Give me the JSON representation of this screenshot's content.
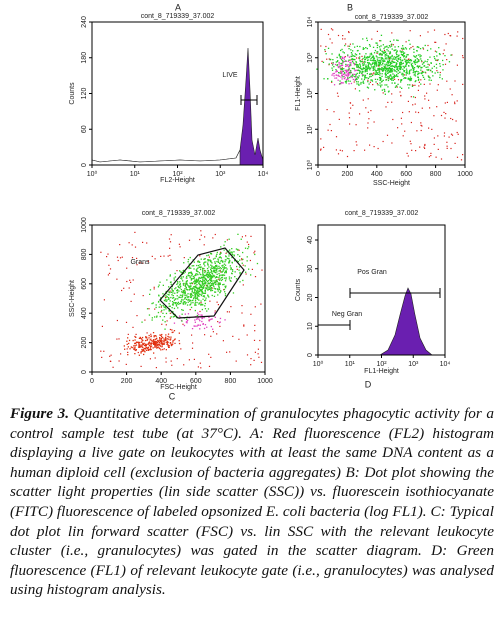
{
  "panels": [
    {
      "label": "A",
      "title": "cont_8_719339_37.002",
      "x_label": "FL2-Height",
      "y_label": "Counts",
      "xticks": [
        "10⁰",
        "10¹",
        "10²",
        "10³",
        "10⁴"
      ],
      "yticks": [
        "0",
        "60",
        "120",
        "180",
        "240"
      ],
      "annotations": [
        "LIVE"
      ]
    },
    {
      "label": "B",
      "title": "cont_8_719339_37.002",
      "x_label": "SSC-Height",
      "y_label": "FL1-Height",
      "xticks": [
        "0",
        "200",
        "400",
        "600",
        "800",
        "1000"
      ],
      "yticks": [
        "10⁰",
        "10¹",
        "10²",
        "10³",
        "10⁴"
      ],
      "annotations": []
    },
    {
      "label": "C",
      "title": "cont_8_719339_37.002",
      "x_label": "FSC-Height",
      "y_label": "SSC-Height",
      "xticks": [
        "0",
        "200",
        "400",
        "600",
        "800",
        "1000"
      ],
      "yticks": [
        "0",
        "200",
        "400",
        "600",
        "800",
        "1000"
      ],
      "annotations": [
        "Grans"
      ]
    },
    {
      "label": "D",
      "title": "cont_8_719339_37.002",
      "x_label": "FL1-Height",
      "y_label": "Counts",
      "xticks": [
        "10⁰",
        "10¹",
        "10²",
        "10³",
        "10⁴"
      ],
      "yticks": [
        "0",
        "10",
        "20",
        "30",
        "40"
      ],
      "annotations": [
        "Pos Gran",
        "Neg Gran"
      ]
    }
  ],
  "caption": {
    "label": "Figure 3.",
    "text": "Quantitative determination of granulocytes phagocytic activity for a control sample test tube (at 37°C). A: Red fluorescence (FL2) histogram displaying a live gate on leukocytes with at least the same DNA content as a human diploid cell (exclusion of bacteria aggregates) B: Dot plot showing the scatter light properties (lin side scatter (SSC)) vs. fluorescein isothiocyanate (FITC) fluorescence of labeled opsonized E. coli bacteria (log FL1). C: Typical dot plot lin forward scatter (FSC) vs. lin SSC with the relevant leukocyte cluster (i.e., granulocytes) was gated in the scatter diagram. D: Green fluorescence (FL1) of relevant leukocyte gate (i.e., granulocytes) was analysed using histogram analysis."
  }
}
